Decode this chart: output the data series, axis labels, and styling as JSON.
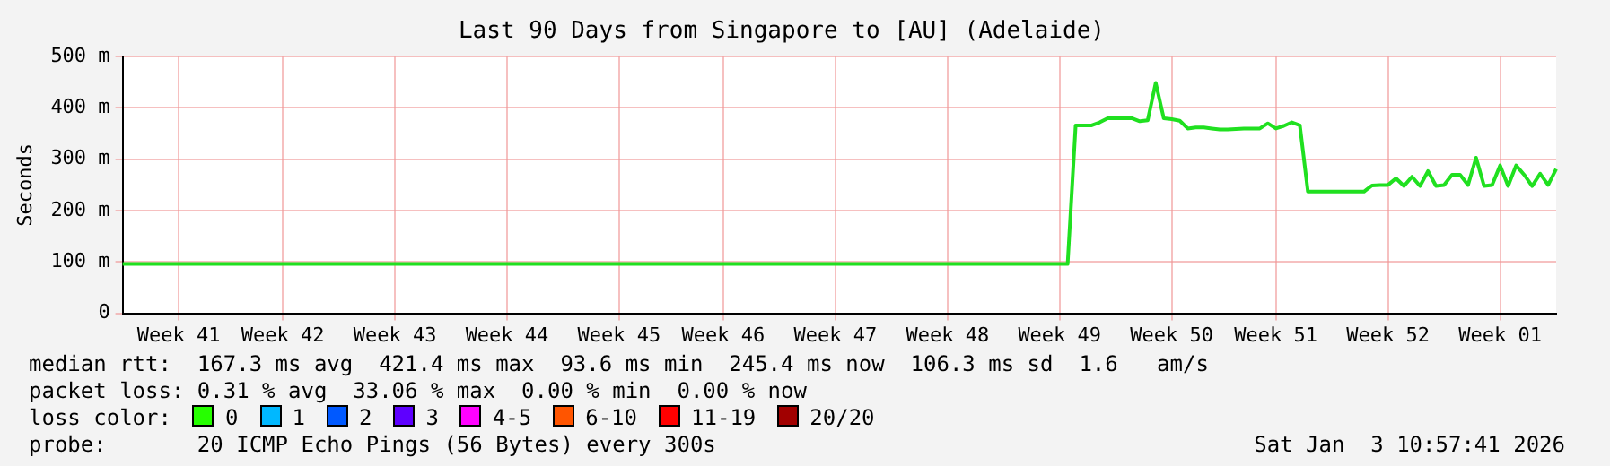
{
  "chart_data": {
    "type": "line",
    "title": "Last 90 Days from Singapore to [AU] (Adelaide)",
    "ylabel": "Seconds",
    "categories": [
      null,
      null,
      null,
      null,
      null,
      null,
      null,
      "Week 41",
      null,
      null,
      null,
      null,
      null,
      null,
      null,
      null,
      null,
      null,
      null,
      null,
      "Week 42",
      null,
      null,
      null,
      null,
      null,
      null,
      null,
      null,
      null,
      null,
      null,
      null,
      null,
      "Week 43",
      null,
      null,
      null,
      null,
      null,
      null,
      null,
      null,
      null,
      null,
      null,
      null,
      null,
      "Week 44",
      null,
      null,
      null,
      null,
      null,
      null,
      null,
      null,
      null,
      null,
      null,
      null,
      null,
      "Week 45",
      null,
      null,
      null,
      null,
      null,
      null,
      null,
      null,
      null,
      null,
      null,
      null,
      "Week 46",
      null,
      null,
      null,
      null,
      null,
      null,
      null,
      null,
      null,
      null,
      null,
      null,
      null,
      "Week 47",
      null,
      null,
      null,
      null,
      null,
      null,
      null,
      null,
      null,
      null,
      null,
      null,
      null,
      "Week 48",
      null,
      null,
      null,
      null,
      null,
      null,
      null,
      null,
      null,
      null,
      null,
      null,
      null,
      "Week 49",
      null,
      null,
      null,
      null,
      null,
      null,
      null,
      null,
      null,
      null,
      null,
      null,
      null,
      "Week 50",
      null,
      null,
      null,
      null,
      null,
      null,
      null,
      null,
      null,
      null,
      null,
      null,
      "Week 51",
      null,
      null,
      null,
      null,
      null,
      null,
      null,
      null,
      null,
      null,
      null,
      null,
      null,
      "Week 52",
      null,
      null,
      null,
      null,
      null,
      null,
      null,
      null,
      null,
      null,
      null,
      null,
      null,
      "Week 01",
      null,
      null,
      null,
      null,
      null,
      null,
      null
    ],
    "series": [
      {
        "color": "#20e020",
        "values": [
          96,
          96,
          96,
          96,
          96,
          96,
          96,
          96,
          96,
          96,
          96,
          96,
          96,
          96,
          96,
          96,
          96,
          96,
          96,
          96,
          96,
          96,
          96,
          96,
          96,
          96,
          96,
          96,
          96,
          96,
          96,
          96,
          96,
          96,
          96,
          96,
          96,
          96,
          96,
          96,
          96,
          96,
          96,
          96,
          96,
          96,
          96,
          96,
          96,
          96,
          96,
          96,
          96,
          96,
          96,
          96,
          96,
          96,
          96,
          96,
          96,
          96,
          96,
          96,
          96,
          96,
          96,
          96,
          96,
          96,
          96,
          96,
          96,
          96,
          96,
          96,
          96,
          96,
          96,
          96,
          96,
          96,
          96,
          96,
          96,
          96,
          96,
          96,
          96,
          96,
          96,
          96,
          96,
          96,
          96,
          96,
          96,
          96,
          96,
          96,
          96,
          96,
          96,
          96,
          96,
          96,
          96,
          96,
          96,
          96,
          96,
          96,
          96,
          96,
          96,
          96,
          96,
          96,
          96,
          366,
          366,
          366,
          372,
          380,
          380,
          380,
          380,
          374,
          376,
          449,
          380,
          378,
          375,
          360,
          362,
          362,
          360,
          358,
          358,
          359,
          360,
          360,
          360,
          370,
          360,
          365,
          372,
          366,
          237,
          237,
          237,
          237,
          237,
          237,
          237,
          237,
          249,
          250,
          250,
          263,
          248,
          266,
          248,
          277,
          248,
          250,
          270,
          270,
          250,
          303,
          248,
          250,
          288,
          248,
          288,
          270,
          248,
          272,
          250,
          281
        ]
      }
    ],
    "ylim": [
      0,
      500
    ],
    "yticks": [
      0,
      {
        "value": 100,
        "label": "100 m"
      },
      {
        "value": 200,
        "label": "200 m"
      },
      {
        "value": 300,
        "label": "300 m"
      },
      {
        "value": 400,
        "label": "400 m"
      },
      {
        "value": 500,
        "label": "500 m"
      }
    ],
    "grid": true,
    "legend": false,
    "marker": "none",
    "line_style": "solid",
    "annotations": [
      "median rtt:  167.3 ms avg  421.4 ms max  93.6 ms min  245.4 ms now  106.3 ms sd  1.6   am/s",
      "packet loss: 0.31 % avg  33.06 % max  0.00 % min  0.00 % now",
      "loss color:",
      "0",
      "1",
      "2",
      "3",
      "4-5",
      "6-10",
      "11-19",
      "20/20",
      "probe:       20 ICMP Echo Pings (56 Bytes) every 300s",
      "Sat Jan  3 10:57:41 2026"
    ]
  }
}
